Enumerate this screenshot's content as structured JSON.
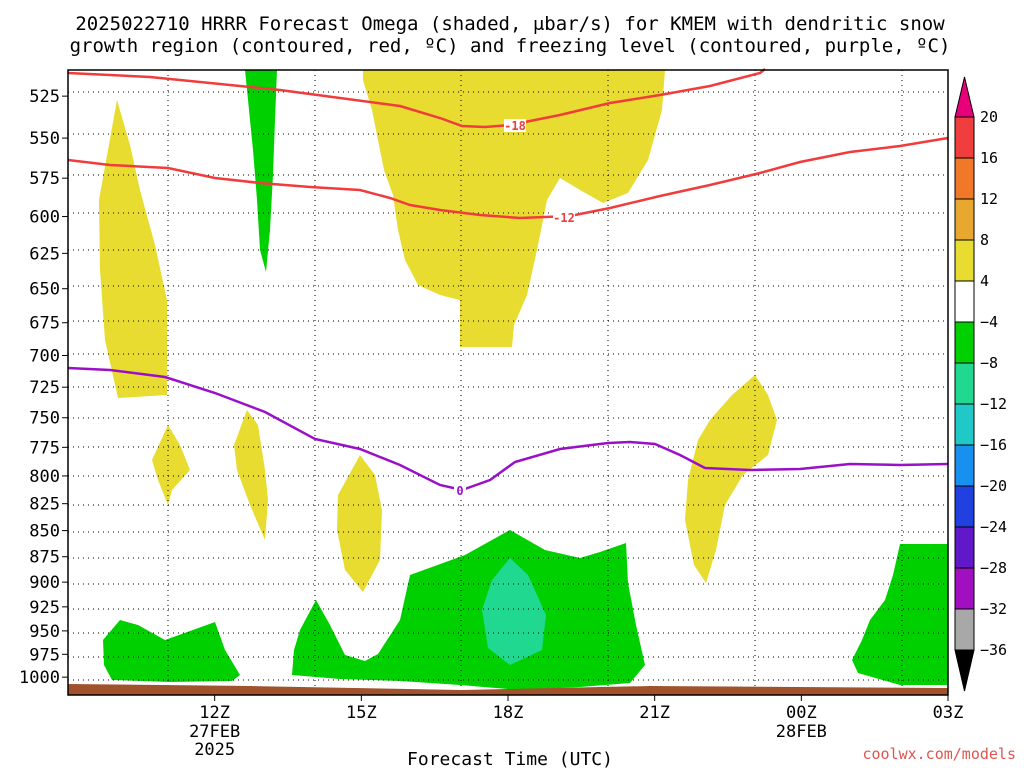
{
  "chart_data": {
    "type": "contour",
    "title_line1": "2025022710 HRRR Forecast Omega (shaded, μbar/s) for KMEM with dendritic snow",
    "title_line2": "growth region (contoured, red, ºC) and freezing level (contoured, purple, ºC)",
    "xlabel": "Forecast Time (UTC)",
    "credit": "coolwx.com/models",
    "y_ticks": [
      "525",
      "550",
      "575",
      "600",
      "625",
      "650",
      "675",
      "700",
      "725",
      "750",
      "775",
      "800",
      "825",
      "850",
      "875",
      "900",
      "925",
      "950",
      "975",
      "1000"
    ],
    "x_ticks": [
      {
        "label": "12Z",
        "sub1": "27FEB",
        "sub2": "2025"
      },
      {
        "label": "15Z",
        "sub1": "",
        "sub2": ""
      },
      {
        "label": "18Z",
        "sub1": "",
        "sub2": ""
      },
      {
        "label": "21Z",
        "sub1": "",
        "sub2": ""
      },
      {
        "label": "00Z",
        "sub1": "28FEB",
        "sub2": ""
      },
      {
        "label": "03Z",
        "sub1": "",
        "sub2": ""
      }
    ],
    "colorbar": {
      "labels": [
        "20",
        "16",
        "12",
        "8",
        "4",
        "−4",
        "−8",
        "−12",
        "−16",
        "−20",
        "−24",
        "−28",
        "−32",
        "−36"
      ],
      "colors": [
        "#e8007a",
        "#f03d3d",
        "#f07828",
        "#e8a830",
        "#e8dc30",
        "#ffffff",
        "#00d000",
        "#20d890",
        "#20c8c8",
        "#1890f0",
        "#2040e0",
        "#6018c8",
        "#a010c0",
        "#a8a8a8",
        "#000000"
      ]
    },
    "contour_labels": {
      "dgz_upper": "-18",
      "dgz_lower": "-12",
      "freezing": "0"
    },
    "colors": {
      "dgz": "#f03c3c",
      "freezing": "#9a10c8",
      "omega_positive": "#e8dc30",
      "omega_negative": "#00d000",
      "omega_strong_negative": "#20d890",
      "ground": "#a0522d"
    }
  }
}
